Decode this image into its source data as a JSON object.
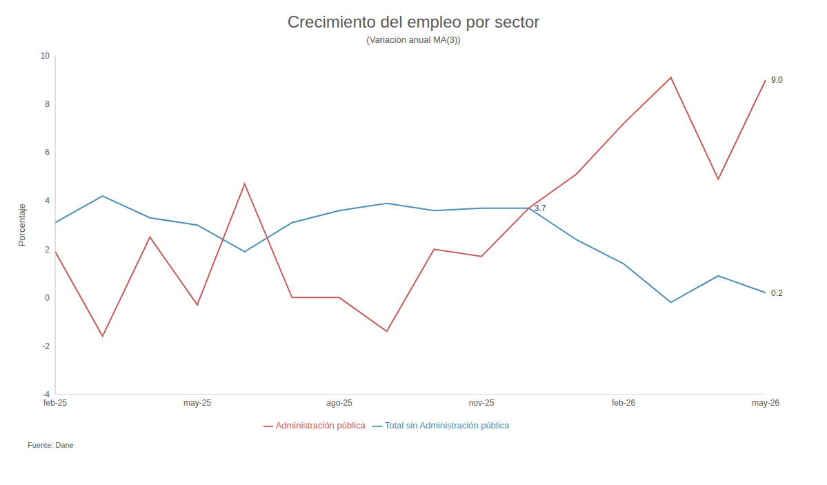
{
  "chart_data": {
    "type": "line",
    "title": "Crecimiento del empleo por sector",
    "subtitle": "(Variación anual MA(3))",
    "y_label": "Porcentaje",
    "source": "Fuente: Dane",
    "categories": [
      "feb-25",
      null,
      null,
      "may-25",
      null,
      null,
      "ago-25",
      null,
      null,
      "nov-25",
      null,
      null,
      "feb-26",
      null,
      null,
      "may-26"
    ],
    "series": [
      {
        "name": "Total sin Administración pública",
        "color": "#4a8db5",
        "values": [
          3.1,
          4.2,
          3.3,
          3.0,
          1.9,
          3.1,
          3.6,
          3.9,
          3.6,
          3.7,
          3.7,
          2.4,
          1.4,
          -0.2,
          0.9,
          0.2
        ]
      },
      {
        "name": "Administración pública",
        "color": "#c65a5a",
        "values": [
          1.9,
          -1.6,
          2.5,
          -0.3,
          4.7,
          0.0,
          0.0,
          -1.4,
          2.0,
          1.7,
          3.7,
          5.1,
          7.2,
          9.1,
          4.9,
          9.0
        ]
      }
    ],
    "annotations": [
      {
        "text": "3.7",
        "x": 10,
        "y": 3.7
      },
      {
        "text": "9.0",
        "x": 15,
        "y": 9.0
      },
      {
        "text": "0.2",
        "x": 15,
        "y": 0.2
      }
    ],
    "ylim": [
      -4,
      10
    ],
    "yticks": [
      -4,
      -2,
      0,
      2,
      4,
      6,
      8,
      10
    ],
    "grid": false,
    "legend": "bottom"
  }
}
